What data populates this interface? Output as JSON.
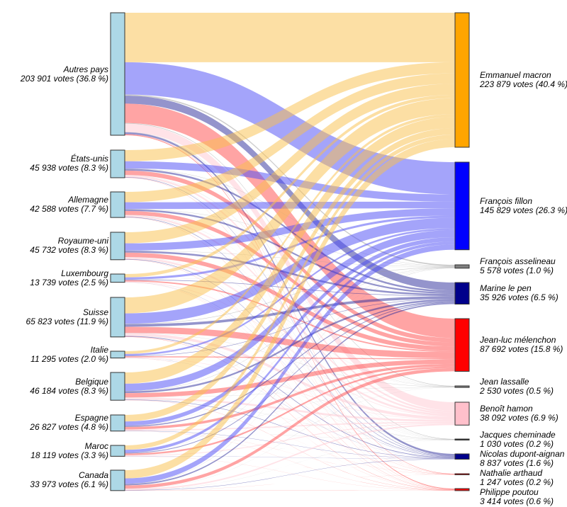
{
  "chart_data": {
    "type": "sankey",
    "title": "",
    "sources": [
      {
        "name": "Autres pays",
        "votes": 203901,
        "text": "203 901 votes (36.8 %)",
        "color": "#add8e6"
      },
      {
        "name": "États-unis",
        "votes": 45938,
        "text": "45 938 votes (8.3 %)",
        "color": "#add8e6"
      },
      {
        "name": "Allemagne",
        "votes": 42588,
        "text": "42 588 votes (7.7 %)",
        "color": "#add8e6"
      },
      {
        "name": "Royaume-uni",
        "votes": 45732,
        "text": "45 732 votes (8.3 %)",
        "color": "#add8e6"
      },
      {
        "name": "Luxembourg",
        "votes": 13739,
        "text": "13 739 votes (2.5 %)",
        "color": "#add8e6"
      },
      {
        "name": "Suisse",
        "votes": 65823,
        "text": "65 823 votes (11.9 %)",
        "color": "#add8e6"
      },
      {
        "name": "Italie",
        "votes": 11295,
        "text": "11 295 votes (2.0 %)",
        "color": "#add8e6"
      },
      {
        "name": "Belgique",
        "votes": 46184,
        "text": "46 184 votes (8.3 %)",
        "color": "#add8e6"
      },
      {
        "name": "Espagne",
        "votes": 26827,
        "text": "26 827 votes (4.8 %)",
        "color": "#add8e6"
      },
      {
        "name": "Maroc",
        "votes": 18119,
        "text": "18 119 votes (3.3 %)",
        "color": "#add8e6"
      },
      {
        "name": "Canada",
        "votes": 33973,
        "text": "33 973 votes (6.1 %)",
        "color": "#add8e6"
      }
    ],
    "targets": [
      {
        "name": "Emmanuel macron",
        "votes": 223879,
        "text": "223 879 votes (40.4 %)",
        "color": "#ffa500",
        "flow_color": "#f9c04a"
      },
      {
        "name": "François fillon",
        "votes": 145829,
        "text": "145 829 votes (26.3 %)",
        "color": "#0000ff",
        "flow_color": "#4a4af5"
      },
      {
        "name": "François asselineau",
        "votes": 5578,
        "text": "5 578 votes (1.0 %)",
        "color": "#808080",
        "flow_color": "#9a9a9a"
      },
      {
        "name": "Marine le pen",
        "votes": 35926,
        "text": "35 926 votes (6.5 %)",
        "color": "#00008b",
        "flow_color": "#2a2a9a"
      },
      {
        "name": "Jean-luc mélenchon",
        "votes": 87692,
        "text": "87 692 votes (15.8 %)",
        "color": "#ff0000",
        "flow_color": "#ff4a4a"
      },
      {
        "name": "Jean lassalle",
        "votes": 2530,
        "text": "2 530 votes (0.5 %)",
        "color": "#808080",
        "flow_color": "#9a9a9a"
      },
      {
        "name": "Benoît hamon",
        "votes": 38092,
        "text": "38 092 votes (6.9 %)",
        "color": "#ffc0cb",
        "flow_color": "#ffc8d2"
      },
      {
        "name": "Jacques cheminade",
        "votes": 1030,
        "text": "1 030 votes (0.2 %)",
        "color": "#333333",
        "flow_color": "#888888"
      },
      {
        "name": "Nicolas dupont-aignan",
        "votes": 8837,
        "text": "8 837 votes (1.6 %)",
        "color": "#00008b",
        "flow_color": "#2a2a9a"
      },
      {
        "name": "Nathalie arthaud",
        "votes": 1247,
        "text": "1 247 votes (0.2 %)",
        "color": "#ff0000",
        "flow_color": "#ff3030"
      },
      {
        "name": "Philippe poutou",
        "votes": 3414,
        "text": "3 414 votes (0.6 %)",
        "color": "#ff0000",
        "flow_color": "#ff3030"
      }
    ]
  }
}
